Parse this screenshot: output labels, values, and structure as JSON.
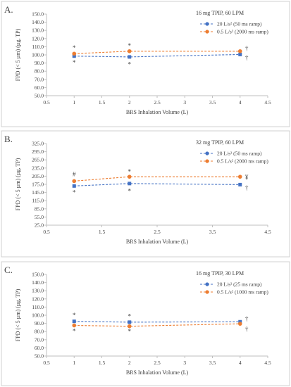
{
  "chart_data": [
    {
      "type": "line",
      "panel_label": "A.",
      "title": "16 mg TPIP, 60 LPM",
      "xlabel": "BRS Inhalation Volume (L)",
      "ylabel": "FPD (< 5 µm) (µg, TP)",
      "xlim": [
        0.5,
        4.5
      ],
      "ylim": [
        50,
        150
      ],
      "xticks": [
        "0.5",
        "1",
        "1.5",
        "2",
        "2.5",
        "3",
        "3.5",
        "4",
        "4.5"
      ],
      "yticks": [
        "50.0",
        "60.0",
        "70.0",
        "80.0",
        "90.0",
        "100.0",
        "110.0",
        "120.0",
        "130.0",
        "140.0",
        "150.0"
      ],
      "x": [
        1,
        2,
        4
      ],
      "series": [
        {
          "name": "20 L/s² (50 ms ramp)",
          "color": "#4472c4",
          "values": [
            98.5,
            97.5,
            100.5
          ]
        },
        {
          "name": "0.5 L/s² (2000 ms ramp)",
          "color": "#ed7d31",
          "values": [
            101.5,
            104.5,
            104.5
          ]
        }
      ],
      "annotations": [
        {
          "text": "*",
          "x": 1,
          "y": 108.5
        },
        {
          "text": "*",
          "x": 1,
          "y": 90.5
        },
        {
          "text": "*",
          "x": 2,
          "y": 111
        },
        {
          "text": "*",
          "x": 2,
          "y": 88.5
        },
        {
          "text": "†",
          "x": 4.12,
          "y": 108
        },
        {
          "text": "†",
          "x": 4.12,
          "y": 96.5
        }
      ],
      "legend": "top-right",
      "grid": false
    },
    {
      "type": "line",
      "panel_label": "B.",
      "title": "32 mg TPIP, 60 LPM",
      "xlabel": "BRS Inhalation Volume (L)",
      "ylabel": "FPD (< 5 µm) (µg, TP)",
      "xlim": [
        0.5,
        4.5
      ],
      "ylim": [
        25,
        325
      ],
      "xticks": [
        "0.5",
        "1.5",
        "2.5",
        "3.5",
        "4.5"
      ],
      "yticks": [
        "25.0",
        "55.0",
        "85.0",
        "115.0",
        "145.0",
        "175.0",
        "205.0",
        "235.0",
        "265.0",
        "295.0",
        "325.0"
      ],
      "x": [
        1,
        2,
        4
      ],
      "series": [
        {
          "name": "20 L/s² (50 ms ramp)",
          "color": "#4472c4",
          "values": [
            169,
            178,
            174
          ]
        },
        {
          "name": "0.5 L/s² (2000 ms ramp)",
          "color": "#ed7d31",
          "values": [
            187,
            203,
            203
          ]
        }
      ],
      "annotations": [
        {
          "text": "#",
          "x": 1,
          "y": 213
        },
        {
          "text": "*",
          "x": 1,
          "y": 145
        },
        {
          "text": "*",
          "x": 2,
          "y": 221
        },
        {
          "text": "*",
          "x": 2,
          "y": 150
        },
        {
          "text": "¥",
          "x": 4.12,
          "y": 201
        },
        {
          "text": "†",
          "x": 4.12,
          "y": 162
        }
      ],
      "legend": "top-right",
      "grid": false
    },
    {
      "type": "line",
      "panel_label": "C.",
      "title": "16 mg TPIP, 30 LPM",
      "xlabel": "BRS Inhalation Volume (L)",
      "ylabel": "FPD (< 5 µm) (µg, TP)",
      "xlim": [
        0.5,
        4.5
      ],
      "ylim": [
        50,
        150
      ],
      "xticks": [
        "0.5",
        "1",
        "1.5",
        "2",
        "2.5",
        "3",
        "3.5",
        "4",
        "4.5"
      ],
      "yticks": [
        "50.0",
        "60.0",
        "70.0",
        "80.0",
        "90.0",
        "100.0",
        "110.0",
        "120.0",
        "130.0",
        "140.0",
        "150.0"
      ],
      "x": [
        1,
        2,
        4
      ],
      "series": [
        {
          "name": "20 L/s² (25 ms ramp)",
          "color": "#4472c4",
          "values": [
            92.5,
            91.5,
            92.0
          ]
        },
        {
          "name": "0.5 L/s² (1000 ms ramp)",
          "color": "#ed7d31",
          "values": [
            87.5,
            86.5,
            89.5
          ]
        }
      ],
      "annotations": [
        {
          "text": "*",
          "x": 1,
          "y": 100
        },
        {
          "text": "*",
          "x": 1,
          "y": 80.5
        },
        {
          "text": "*",
          "x": 2,
          "y": 98.5
        },
        {
          "text": "*",
          "x": 2,
          "y": 80
        },
        {
          "text": "†",
          "x": 4.12,
          "y": 95.5
        },
        {
          "text": "†",
          "x": 4.12,
          "y": 83
        }
      ],
      "legend": "top-right",
      "grid": false
    }
  ]
}
